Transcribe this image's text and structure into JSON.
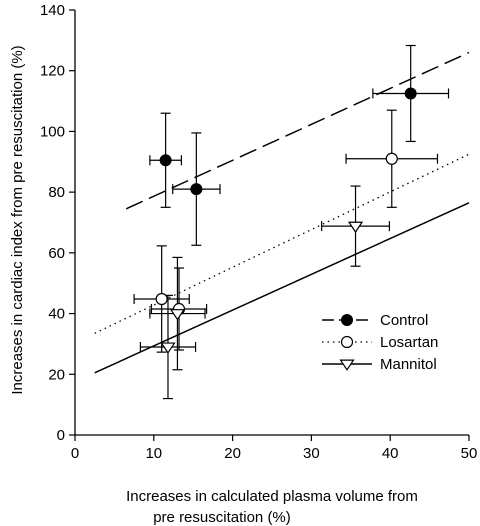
{
  "chart_data": {
    "type": "scatter",
    "xlabel": [
      "Increases in calculated plasma volume from",
      "pre resuscitation (%)"
    ],
    "ylabel": "Increases in cardiac index from pre resuscitation (%)",
    "xlim": [
      0,
      50
    ],
    "ylim": [
      0,
      140
    ],
    "xticks": [
      0,
      10,
      20,
      30,
      40,
      50
    ],
    "yticks": [
      0,
      20,
      40,
      60,
      80,
      100,
      120,
      140
    ],
    "grid": false,
    "legend_position": "lower-right",
    "series": [
      {
        "name": "Control",
        "marker": "filled-circle",
        "line_style": "dashed",
        "points": [
          {
            "x": 11.5,
            "y": 90.5,
            "xerr": 2.0,
            "yerr": 15.5
          },
          {
            "x": 15.4,
            "y": 81.0,
            "xerr": 3.0,
            "yerr": 18.5
          },
          {
            "x": 42.6,
            "y": 112.5,
            "xerr": 4.8,
            "yerr": 15.8
          }
        ],
        "fit_line": {
          "x": [
            6.5,
            50
          ],
          "y": [
            74.5,
            126
          ]
        }
      },
      {
        "name": "Losartan",
        "marker": "open-circle",
        "line_style": "dotted",
        "points": [
          {
            "x": 11.0,
            "y": 44.8,
            "xerr": 3.5,
            "yerr": 17.5
          },
          {
            "x": 13.2,
            "y": 41.5,
            "xerr": 3.5,
            "yerr": 13.5
          },
          {
            "x": 40.2,
            "y": 91.0,
            "xerr": 5.8,
            "yerr": 16.0
          }
        ],
        "fit_line": {
          "x": [
            2.5,
            50
          ],
          "y": [
            33.5,
            92.5
          ]
        }
      },
      {
        "name": "Mannitol",
        "marker": "open-triangle-down",
        "line_style": "solid",
        "points": [
          {
            "x": 11.8,
            "y": 29.0,
            "xerr": 3.5,
            "yerr": 17.0
          },
          {
            "x": 13.0,
            "y": 40.0,
            "xerr": 3.5,
            "yerr": 18.5
          },
          {
            "x": 35.6,
            "y": 68.8,
            "xerr": 4.3,
            "yerr": 13.2
          }
        ],
        "fit_line": {
          "x": [
            2.5,
            50
          ],
          "y": [
            20.5,
            76.5
          ]
        }
      }
    ]
  }
}
